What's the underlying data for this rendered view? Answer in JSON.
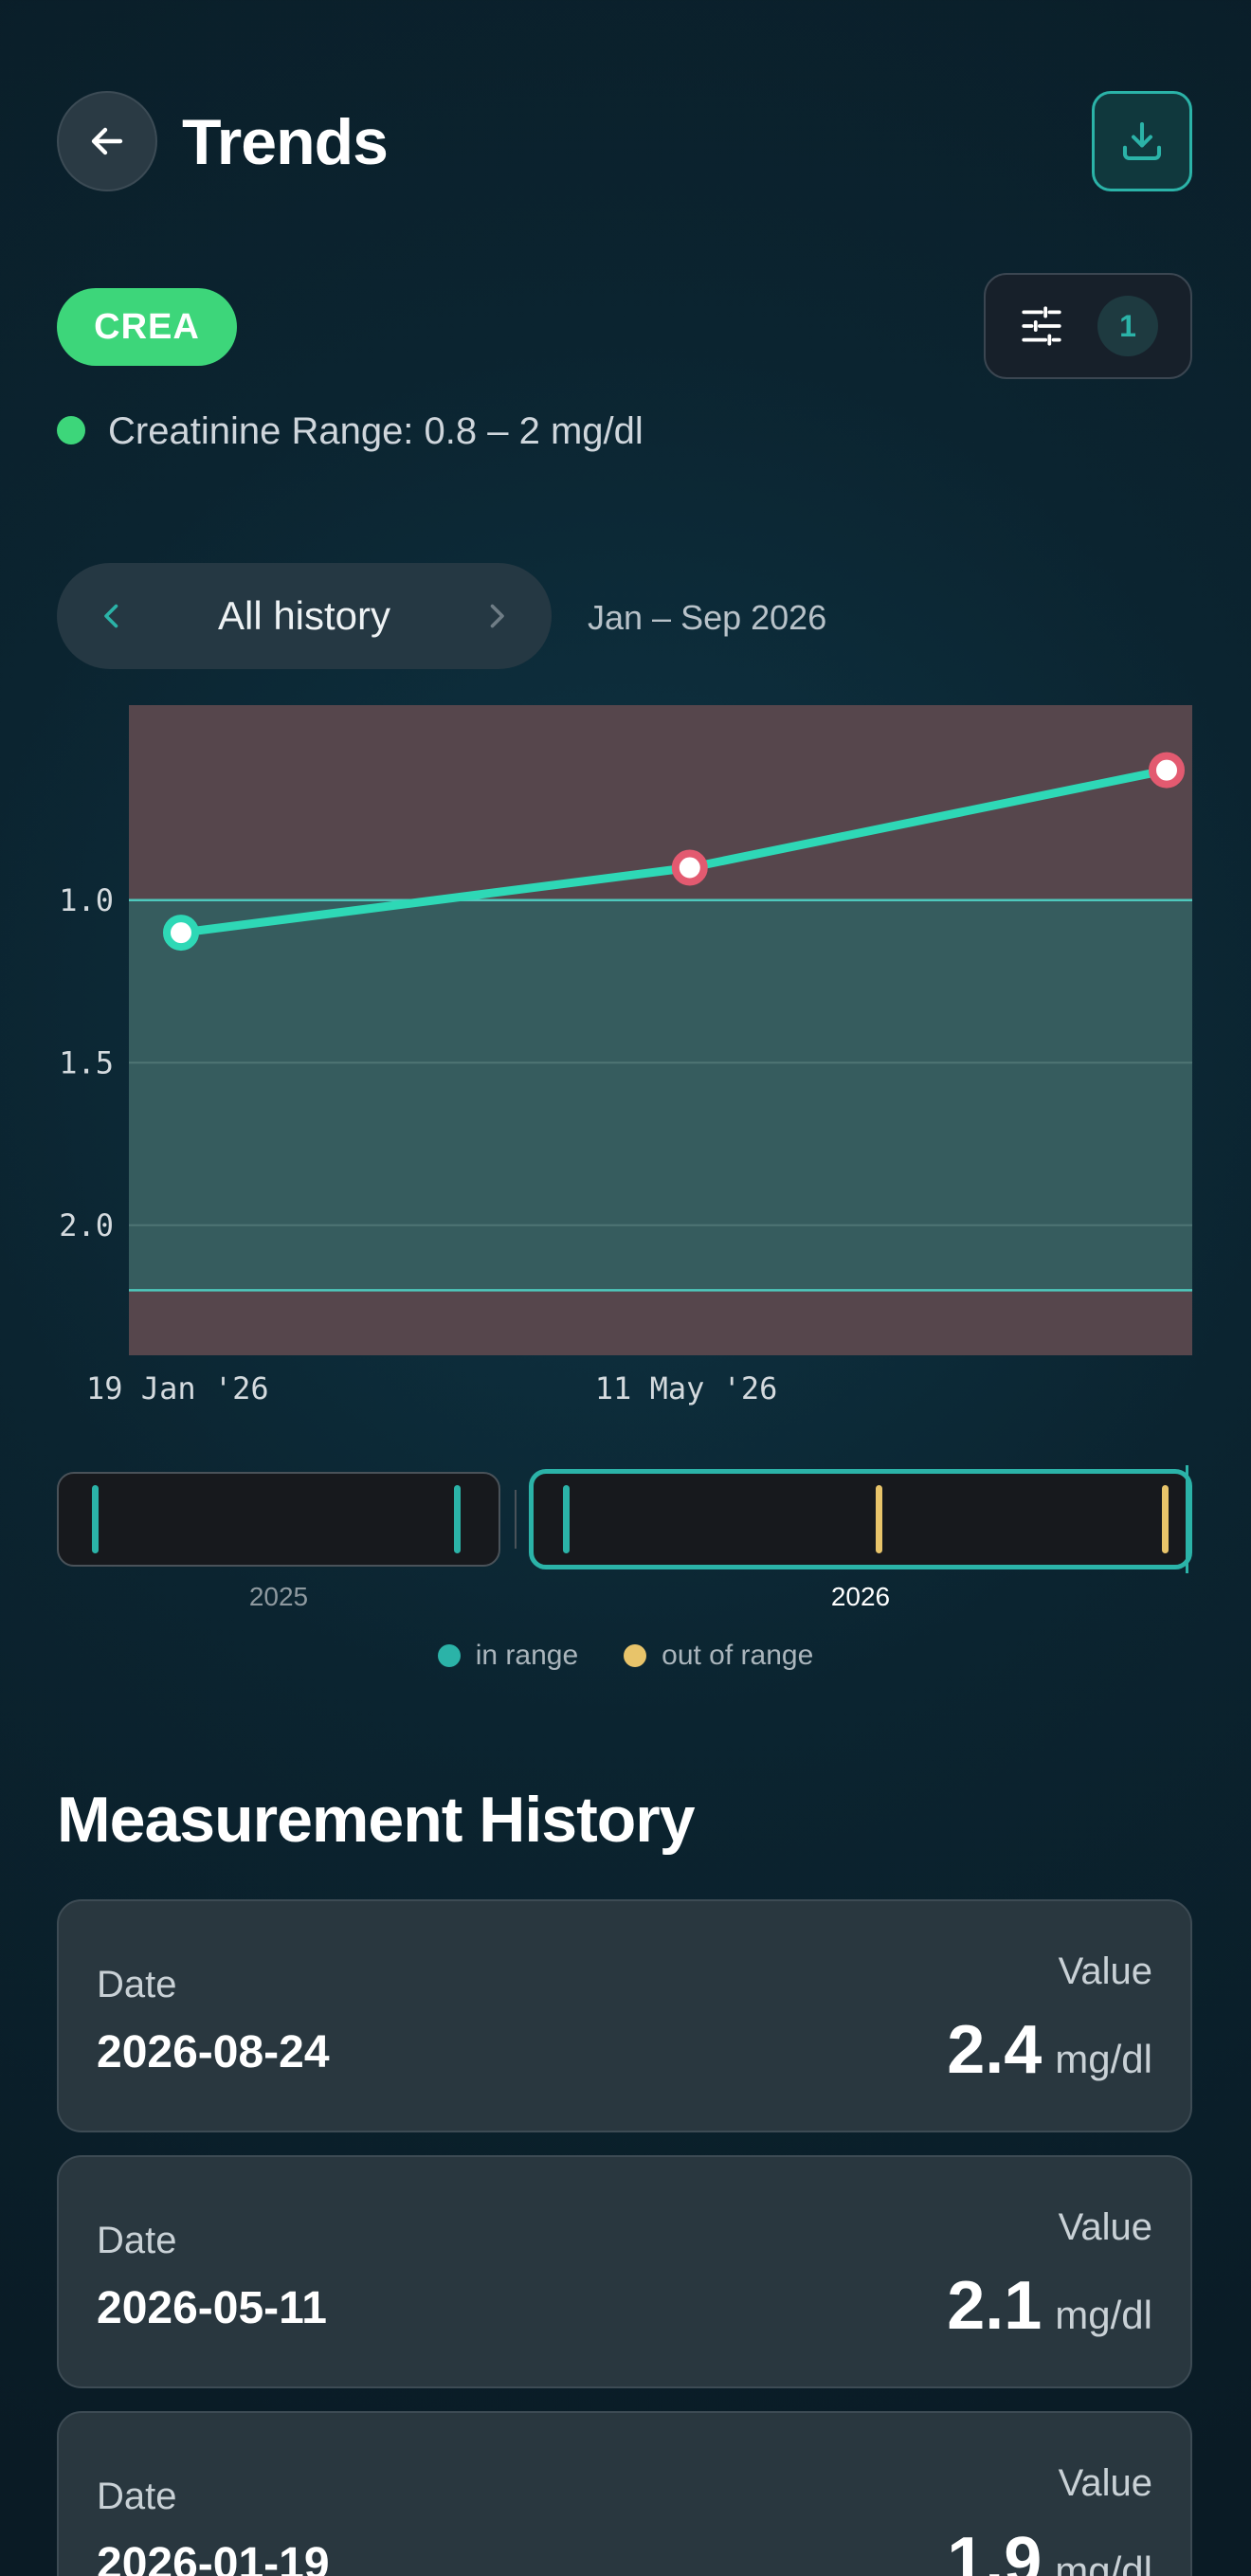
{
  "header": {
    "title": "Trends",
    "back_icon": "arrow-left-icon",
    "download_icon": "download-icon"
  },
  "test": {
    "code": "CREA",
    "range_label": "Creatinine Range: 0.8 – 2 mg/dl",
    "range_color": "#3dd67a"
  },
  "filter": {
    "icon": "sliders-icon",
    "count": "1"
  },
  "period": {
    "label": "All history",
    "range_text": "Jan – Sep 2026"
  },
  "chart_data": {
    "type": "line",
    "x": [
      "2026-01-19",
      "2026-05-11",
      "2026-08-24"
    ],
    "x_tick_labels": [
      "19 Jan '26",
      "11 May '26"
    ],
    "y_tick_labels": [
      "2.0",
      "1.5",
      "1.0"
    ],
    "series": [
      {
        "values": [
          1.9,
          2.1,
          2.4
        ],
        "point_status": [
          "in",
          "out",
          "out"
        ]
      }
    ],
    "ylim": [
      0.6,
      2.6
    ],
    "yticks": [
      1.0,
      1.5,
      2.0
    ],
    "reference_range": [
      0.8,
      2.0
    ],
    "colors": {
      "line": "#2ed8b6",
      "in_range_band": "#365c5e",
      "out_range_band": "#56464c",
      "out_point": "#e35a70",
      "in_point": "#2ed8b6"
    }
  },
  "timeline": {
    "years": [
      {
        "label": "2025",
        "ticks": [
          "in",
          "in"
        ],
        "selected": false
      },
      {
        "label": "2026",
        "ticks": [
          "in",
          "out",
          "out"
        ],
        "selected": true
      }
    ],
    "legend": [
      {
        "label": "in range",
        "color": "#2bb3a8"
      },
      {
        "label": "out of range",
        "color": "#e8c46a"
      }
    ]
  },
  "history": {
    "title": "Measurement History",
    "date_label": "Date",
    "value_label": "Value",
    "items": [
      {
        "date": "2026-08-24",
        "value": "2.4",
        "unit": "mg/dl"
      },
      {
        "date": "2026-05-11",
        "value": "2.1",
        "unit": "mg/dl"
      },
      {
        "date": "2026-01-19",
        "value": "1.9",
        "unit": "mg/dl"
      }
    ]
  }
}
